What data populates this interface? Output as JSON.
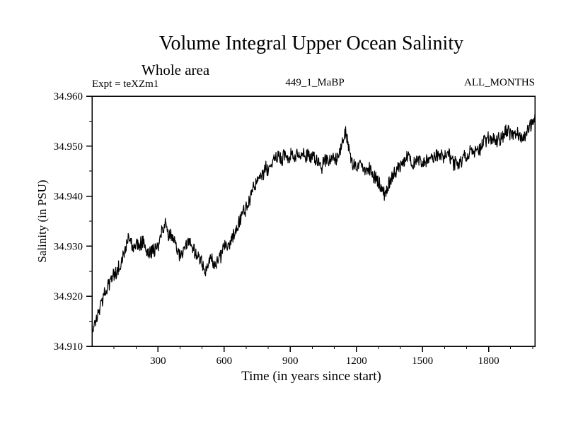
{
  "chart_data": {
    "type": "line",
    "title": "Volume Integral Upper Ocean Salinity",
    "subtitle": "Whole area",
    "annotations": {
      "experiment": "Expt = teXZm1",
      "dataset": "449_1_MaBP",
      "months": "ALL_MONTHS"
    },
    "xlabel": "Time (in years since start)",
    "ylabel": "Salinity (in PSU)",
    "xlim": [
      0,
      2010
    ],
    "ylim": [
      34.91,
      34.96
    ],
    "x_ticks": [
      300,
      600,
      900,
      1200,
      1500,
      1800
    ],
    "x_minor_step": 100,
    "y_ticks": [
      "34.910",
      "34.920",
      "34.930",
      "34.940",
      "34.950",
      "34.960"
    ],
    "y_minor_step": 0.005,
    "grid": false,
    "legend": false,
    "background_color": "#ffffff",
    "line_color": "#000000",
    "series": [
      {
        "name": "upper_ocean_salinity",
        "trend_x": [
          0,
          30,
          60,
          100,
          130,
          160,
          190,
          220,
          260,
          300,
          330,
          360,
          400,
          440,
          470,
          500,
          520,
          540,
          560,
          600,
          640,
          680,
          720,
          760,
          800,
          840,
          880,
          920,
          960,
          1000,
          1040,
          1080,
          1120,
          1150,
          1180,
          1220,
          1260,
          1300,
          1330,
          1360,
          1400,
          1440,
          1480,
          1520,
          1560,
          1600,
          1640,
          1680,
          1720,
          1760,
          1800,
          1840,
          1880,
          1920,
          1960,
          1990,
          2010
        ],
        "trend_y": [
          34.9135,
          34.916,
          34.92,
          34.9245,
          34.927,
          34.9315,
          34.9295,
          34.93,
          34.9295,
          34.9305,
          34.9345,
          34.9315,
          34.9285,
          34.9295,
          34.927,
          34.9255,
          34.9235,
          34.9275,
          34.926,
          34.9295,
          34.932,
          34.9355,
          34.94,
          34.9445,
          34.9465,
          34.948,
          34.9475,
          34.9485,
          34.948,
          34.9475,
          34.946,
          34.9465,
          34.9485,
          34.9525,
          34.947,
          34.9465,
          34.9445,
          34.9425,
          34.9395,
          34.9435,
          34.9465,
          34.9485,
          34.9465,
          34.9475,
          34.95,
          34.9485,
          34.9465,
          34.948,
          34.95,
          34.9505,
          34.952,
          34.951,
          34.9535,
          34.9525,
          34.9515,
          34.9545,
          34.9555
        ],
        "noise_hf_amplitude": 0.0013,
        "noise_lf_amplitude": 0.0018,
        "noise_lf_step": 0.0007,
        "noise_lf_decay": 0.965,
        "noise_seed": 987654321,
        "samples": 1100
      }
    ]
  }
}
